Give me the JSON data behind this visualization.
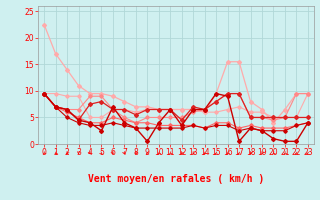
{
  "bg_color": "#cff0f0",
  "grid_color": "#b0d8d8",
  "xlabel": "Vent moyen/en rafales ( km/h )",
  "xlim": [
    -0.5,
    23.5
  ],
  "ylim": [
    0,
    26
  ],
  "yticks": [
    0,
    5,
    10,
    15,
    20,
    25
  ],
  "xticks": [
    0,
    1,
    2,
    3,
    4,
    5,
    6,
    7,
    8,
    9,
    10,
    11,
    12,
    13,
    14,
    15,
    16,
    17,
    18,
    19,
    20,
    21,
    22,
    23
  ],
  "series": [
    {
      "color": "#ffaaaa",
      "lw": 0.9,
      "marker": "D",
      "ms": 2.0,
      "x": [
        0,
        1,
        2,
        3,
        4,
        5,
        6,
        7,
        8,
        9,
        10,
        11,
        12,
        13,
        14,
        15,
        16,
        17,
        18,
        19,
        20,
        21,
        22,
        23
      ],
      "y": [
        22.5,
        17,
        14,
        11,
        9.5,
        9.5,
        9,
        8,
        7,
        7,
        6.5,
        6.5,
        6.5,
        6.5,
        6,
        9.5,
        15.5,
        15.5,
        8,
        6.5,
        4,
        6.5,
        9.5,
        9.5
      ]
    },
    {
      "color": "#ffaaaa",
      "lw": 0.8,
      "marker": "D",
      "ms": 1.8,
      "x": [
        0,
        1,
        2,
        3,
        4,
        5,
        6,
        7,
        8,
        9,
        10,
        11,
        12,
        13,
        14,
        15,
        16,
        17,
        18,
        19,
        20,
        21,
        22,
        23
      ],
      "y": [
        9.5,
        9.5,
        9,
        9,
        5,
        5,
        6.5,
        6.5,
        6,
        6.5,
        6.5,
        6.5,
        6.5,
        6.5,
        6,
        6,
        6.5,
        7,
        6,
        6,
        5,
        5,
        5,
        9.5
      ]
    },
    {
      "color": "#ff8888",
      "lw": 0.8,
      "marker": "D",
      "ms": 1.8,
      "x": [
        0,
        1,
        2,
        3,
        4,
        5,
        6,
        7,
        8,
        9,
        10,
        11,
        12,
        13,
        14,
        15,
        16,
        17,
        18,
        19,
        20,
        21,
        22,
        23
      ],
      "y": [
        9.5,
        7,
        6.5,
        6.5,
        9,
        9,
        6.5,
        5,
        4,
        5,
        5,
        5,
        5,
        6,
        6.5,
        8,
        9.5,
        9.5,
        5,
        5,
        4.5,
        5,
        9.5,
        9.5
      ]
    },
    {
      "color": "#ff6666",
      "lw": 0.8,
      "marker": "D",
      "ms": 1.8,
      "x": [
        0,
        1,
        2,
        3,
        4,
        5,
        6,
        7,
        8,
        9,
        10,
        11,
        12,
        13,
        14,
        15,
        16,
        17,
        18,
        19,
        20,
        21,
        22,
        23
      ],
      "y": [
        9.5,
        7,
        6,
        5,
        4,
        4,
        5,
        4.5,
        4,
        4,
        3.5,
        3.5,
        3.5,
        3.5,
        3,
        4,
        4,
        3,
        3.5,
        3,
        3,
        3,
        3.5,
        4
      ]
    },
    {
      "color": "#dd2222",
      "lw": 0.9,
      "marker": "D",
      "ms": 2.0,
      "x": [
        0,
        1,
        2,
        3,
        4,
        5,
        6,
        7,
        8,
        9,
        10,
        11,
        12,
        13,
        14,
        15,
        16,
        17,
        18,
        19,
        20,
        21,
        22,
        23
      ],
      "y": [
        9.5,
        7,
        6.5,
        4.5,
        7.5,
        8,
        6.5,
        6.5,
        5.5,
        6.5,
        6.5,
        6.5,
        4.5,
        7,
        6.5,
        8,
        9.5,
        9.5,
        5,
        5,
        5,
        5,
        5,
        5
      ]
    },
    {
      "color": "#cc0000",
      "lw": 1.0,
      "marker": "D",
      "ms": 2.0,
      "x": [
        0,
        1,
        2,
        3,
        4,
        5,
        6,
        7,
        8,
        9,
        10,
        11,
        12,
        13,
        14,
        15,
        16,
        17,
        18,
        19,
        20,
        21,
        22,
        23
      ],
      "y": [
        9.5,
        7,
        6.5,
        4.5,
        4,
        2.5,
        7,
        4,
        3,
        0.5,
        4,
        6.5,
        3.5,
        6.5,
        6.5,
        9.5,
        9,
        0.5,
        3,
        2.5,
        1,
        0.5,
        0.5,
        4
      ]
    },
    {
      "color": "#cc0000",
      "lw": 0.8,
      "marker": "D",
      "ms": 1.8,
      "x": [
        0,
        1,
        2,
        3,
        4,
        5,
        6,
        7,
        8,
        9,
        10,
        11,
        12,
        13,
        14,
        15,
        16,
        17,
        18,
        19,
        20,
        21,
        22,
        23
      ],
      "y": [
        9.5,
        7,
        5,
        4,
        3.5,
        3.5,
        4,
        3.5,
        3,
        3,
        3,
        3,
        3,
        3.5,
        3,
        3.5,
        3.5,
        2.5,
        3,
        2.5,
        2.5,
        2.5,
        3.5,
        4
      ]
    }
  ],
  "wind_arrows_x": [
    0,
    1,
    2,
    3,
    4,
    5,
    6,
    7,
    8,
    9,
    10,
    11,
    12,
    13,
    14,
    15,
    16,
    17,
    18,
    19,
    20,
    21,
    22,
    23
  ],
  "wind_arrows_angles": [
    210,
    210,
    195,
    180,
    165,
    150,
    165,
    165,
    195,
    225,
    210,
    210,
    195,
    195,
    210,
    225,
    210,
    225,
    195,
    195,
    210,
    210,
    225,
    240
  ],
  "title_fontsize": 7,
  "axis_fontsize": 7,
  "tick_fontsize": 5.5
}
